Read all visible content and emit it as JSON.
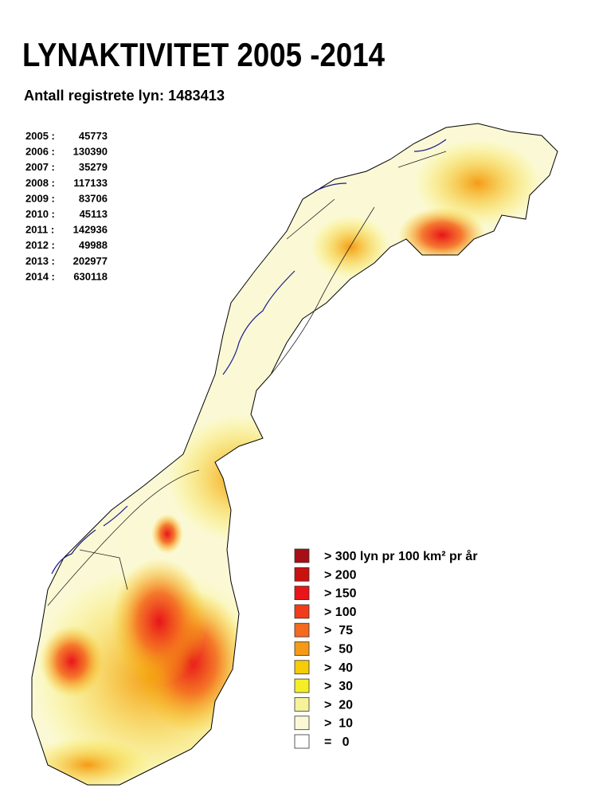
{
  "header": {
    "title": "LYNAKTIVITET 2005 -2014",
    "subtitle": "Antall registrete lyn: 1483413"
  },
  "years": [
    {
      "year": "2005 :",
      "count": 45773
    },
    {
      "year": "2006 :",
      "count": 130390
    },
    {
      "year": "2007 :",
      "count": 35279
    },
    {
      "year": "2008 :",
      "count": 117133
    },
    {
      "year": "2009 :",
      "count": 83706
    },
    {
      "year": "2010 :",
      "count": 45113
    },
    {
      "year": "2011 :",
      "count": 142936
    },
    {
      "year": "2012 :",
      "count": 49988
    },
    {
      "year": "2013 :",
      "count": 202977
    },
    {
      "year": "2014 :",
      "count": 630118
    }
  ],
  "legend": [
    {
      "label": "> 300 lyn pr 100 km² pr år",
      "color": "#a50f15"
    },
    {
      "label": "> 200",
      "color": "#c8120f"
    },
    {
      "label": "> 150",
      "color": "#e8141a"
    },
    {
      "label": "> 100",
      "color": "#f03c1a"
    },
    {
      "label": ">  75",
      "color": "#f46a1e"
    },
    {
      "label": ">  50",
      "color": "#f59a17"
    },
    {
      "label": ">  40",
      "color": "#f5cc06"
    },
    {
      "label": ">  30",
      "color": "#f5ee26"
    },
    {
      "label": ">  20",
      "color": "#f6f29a"
    },
    {
      "label": ">  10",
      "color": "#fbf9d5"
    },
    {
      "label": "=   0",
      "color": "#ffffff"
    }
  ]
}
